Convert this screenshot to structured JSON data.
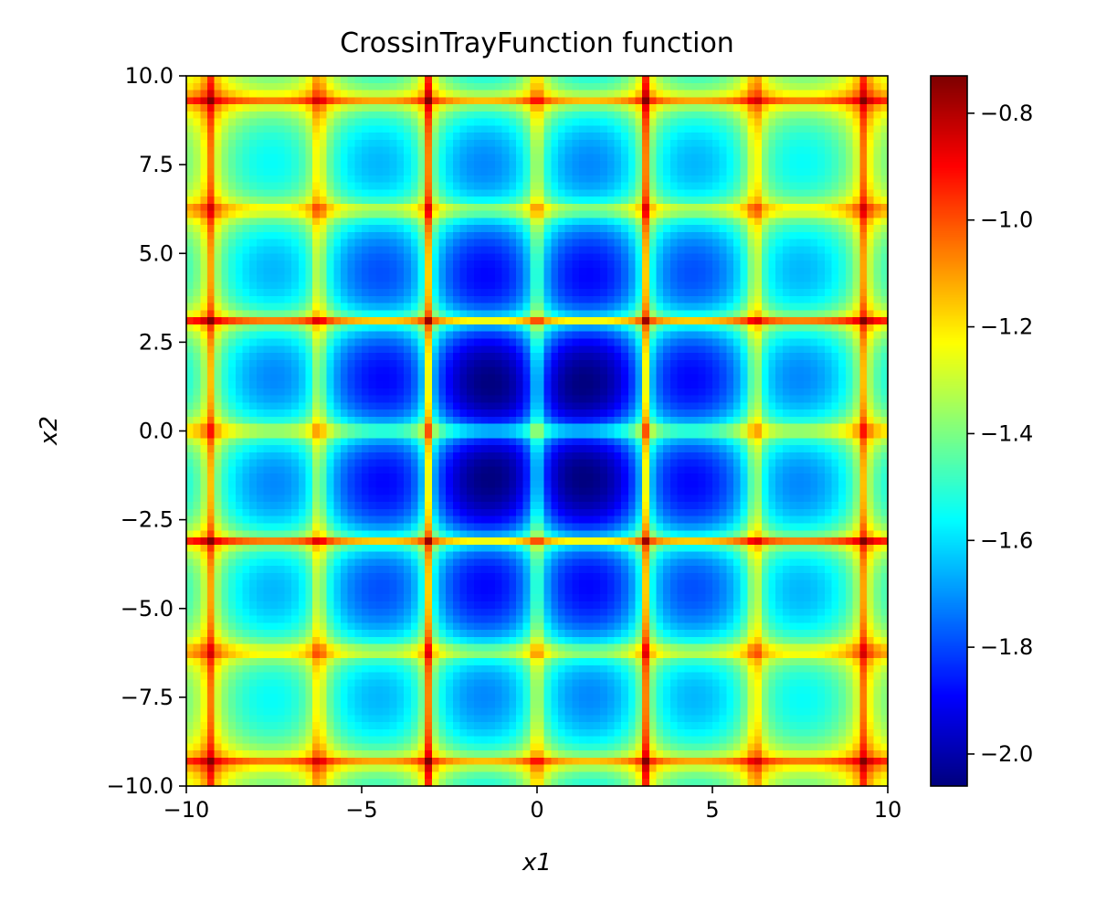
{
  "chart_data": [
    {
      "type": "heatmap",
      "title": "CrossinTrayFunction function",
      "xlabel": "x1",
      "ylabel": "x2",
      "function": "-0.0001*(|sin(x1)*sin(x2)*exp(|100 - sqrt(x1^2+x2^2)/pi|)|+1)^0.1",
      "xlim": [
        -10,
        10
      ],
      "ylim": [
        -10,
        10
      ],
      "grid_resolution": 100,
      "colormap": "jet",
      "value_range": [
        -2.06,
        -0.73
      ],
      "xticks": [
        {
          "value": -10,
          "label": "−10"
        },
        {
          "value": -5,
          "label": "−5"
        },
        {
          "value": 0,
          "label": "0"
        },
        {
          "value": 5,
          "label": "5"
        },
        {
          "value": 10,
          "label": "10"
        }
      ],
      "yticks": [
        {
          "value": 10,
          "label": "10.0"
        },
        {
          "value": 7.5,
          "label": "7.5"
        },
        {
          "value": 5,
          "label": "5.0"
        },
        {
          "value": 2.5,
          "label": "2.5"
        },
        {
          "value": 0,
          "label": "0.0"
        },
        {
          "value": -2.5,
          "label": "−2.5"
        },
        {
          "value": -5,
          "label": "−5.0"
        },
        {
          "value": -7.5,
          "label": "−7.5"
        },
        {
          "value": -10,
          "label": "−10.0"
        }
      ],
      "colorbar_ticks": [
        {
          "value": -0.8,
          "label": "−0.8"
        },
        {
          "value": -1.0,
          "label": "−1.0"
        },
        {
          "value": -1.2,
          "label": "−1.2"
        },
        {
          "value": -1.4,
          "label": "−1.4"
        },
        {
          "value": -1.6,
          "label": "−1.6"
        },
        {
          "value": -1.8,
          "label": "−1.8"
        },
        {
          "value": -2.0,
          "label": "−2.0"
        }
      ]
    }
  ]
}
